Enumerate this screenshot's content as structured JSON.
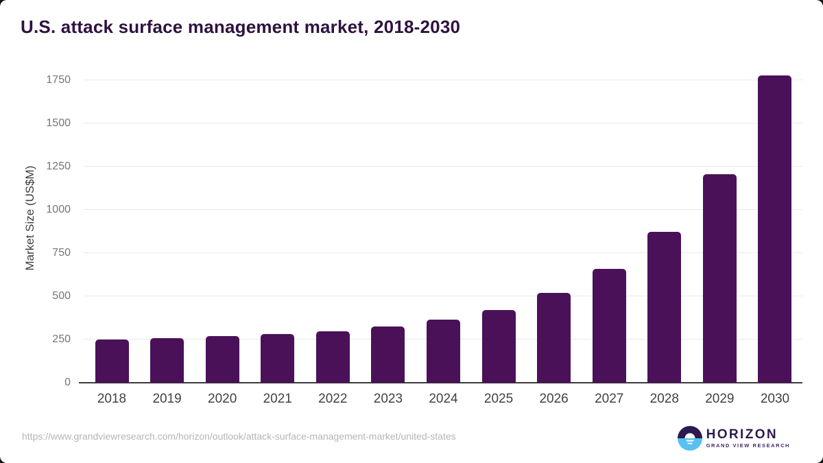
{
  "title": "U.S. attack surface management market, 2018-2030",
  "chart_data": {
    "type": "bar",
    "categories": [
      "2018",
      "2019",
      "2020",
      "2021",
      "2022",
      "2023",
      "2024",
      "2025",
      "2026",
      "2027",
      "2028",
      "2029",
      "2030"
    ],
    "values": [
      250,
      257,
      268,
      280,
      298,
      325,
      366,
      422,
      518,
      658,
      874,
      1208,
      1776
    ],
    "title": "U.S. attack surface management market, 2018-2030",
    "xlabel": "",
    "ylabel": "Market Size (US$M)",
    "ylim": [
      0,
      1790
    ],
    "yticks": [
      0,
      250,
      500,
      750,
      1000,
      1250,
      1500,
      1750
    ],
    "grid": "horizontal-only",
    "legend": "none",
    "bar_color": "#4a1158"
  },
  "colors": {
    "bar": "#4a1158",
    "title_text": "#2f1240",
    "gridline": "#e9e9e9",
    "axis_line": "#3a3a3a",
    "y_tick_text": "#757575",
    "x_tick_text": "#414141",
    "url_text": "#b5b5b5",
    "logo_purple": "#2d1a4e",
    "logo_blue": "#58c1f1"
  },
  "footer": {
    "source_url": "https://www.grandviewresearch.com/horizon/outlook/attack-surface-management-market/united-states",
    "logo": {
      "name": "HORIZON",
      "subtitle": "GRAND VIEW RESEARCH",
      "icon": "horizon-sunrise-circle-icon"
    }
  }
}
